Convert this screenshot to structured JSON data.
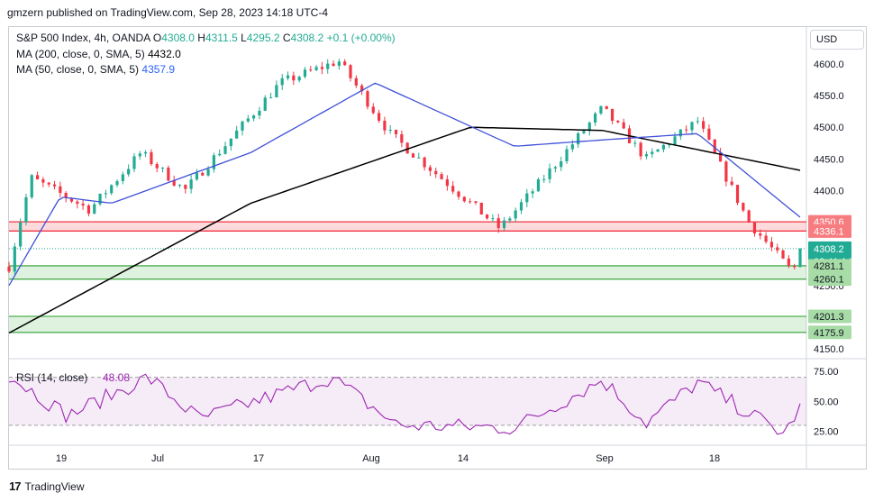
{
  "header": {
    "publisher": "gmzern published on TradingView.com, Sep 28, 2023 14:18 UTC-4"
  },
  "legend": {
    "symbol": "S&P 500 Index, 4h, OANDA",
    "o_label": "O",
    "o_value": "4308.0",
    "h_label": "H",
    "h_value": "4311.5",
    "l_label": "L",
    "l_value": "4295.2",
    "c_label": "C",
    "c_value": "4308.2",
    "change": "+0.1 (+0.00%)",
    "ma200_label": "MA (200, close, 0, SMA, 5)",
    "ma200_value": "4432.0",
    "ma50_label": "MA (50, close, 0, SMA, 5)",
    "ma50_value": "4357.9"
  },
  "currency_label": "USD",
  "footer": {
    "brand": "TradingView",
    "logo_mark": "17"
  },
  "colors": {
    "up": "#22ab94",
    "down": "#f23645",
    "ma50": "#3f51d8",
    "ma200": "#000000",
    "rsi": "#9c27b0",
    "resistance": "#f23645",
    "support": "#4caf50"
  },
  "chart_data": {
    "type": "candlestick",
    "price_axis": {
      "min": 4150,
      "max": 4600,
      "ticks": [
        "4600.0",
        "4550.0",
        "4500.0",
        "4450.0",
        "4400.0",
        "4350.0",
        "4300.0",
        "4250.0",
        "4200.0",
        "4150.0"
      ]
    },
    "x_axis": {
      "labels": [
        "19",
        "Jul",
        "17",
        "Aug",
        "14",
        "Sep",
        "18"
      ],
      "start": "2023-06-12",
      "end": "2023-09-28"
    },
    "series": [
      {
        "name": "S&P 500 Index, 4h, OANDA",
        "key_points": [
          {
            "date": "2023-06-12",
            "value": 4280
          },
          {
            "date": "2023-06-15",
            "value": 4420
          },
          {
            "date": "2023-06-23",
            "value": 4370
          },
          {
            "date": "2023-06-30",
            "value": 4460
          },
          {
            "date": "2023-07-06",
            "value": 4400
          },
          {
            "date": "2023-07-19",
            "value": 4570
          },
          {
            "date": "2023-07-27",
            "value": 4605
          },
          {
            "date": "2023-08-03",
            "value": 4490
          },
          {
            "date": "2023-08-18",
            "value": 4340
          },
          {
            "date": "2023-08-24",
            "value": 4420
          },
          {
            "date": "2023-09-01",
            "value": 4530
          },
          {
            "date": "2023-09-07",
            "value": 4450
          },
          {
            "date": "2023-09-14",
            "value": 4510
          },
          {
            "date": "2023-09-21",
            "value": 4350
          },
          {
            "date": "2023-09-27",
            "value": 4270
          },
          {
            "date": "2023-09-28",
            "value": 4308.2
          }
        ]
      },
      {
        "name": "MA (200, close, 0, SMA, 5)",
        "key_points": [
          {
            "date": "2023-06-12",
            "value": 4175
          },
          {
            "date": "2023-07-15",
            "value": 4380
          },
          {
            "date": "2023-08-14",
            "value": 4500
          },
          {
            "date": "2023-09-01",
            "value": 4495
          },
          {
            "date": "2023-09-28",
            "value": 4432
          }
        ]
      },
      {
        "name": "MA (50, close, 0, SMA, 5)",
        "key_points": [
          {
            "date": "2023-06-12",
            "value": 4250
          },
          {
            "date": "2023-06-19",
            "value": 4390
          },
          {
            "date": "2023-06-26",
            "value": 4380
          },
          {
            "date": "2023-07-15",
            "value": 4460
          },
          {
            "date": "2023-08-01",
            "value": 4570
          },
          {
            "date": "2023-08-20",
            "value": 4470
          },
          {
            "date": "2023-09-01",
            "value": 4480
          },
          {
            "date": "2023-09-14",
            "value": 4490
          },
          {
            "date": "2023-09-28",
            "value": 4357.9
          }
        ]
      }
    ],
    "zones": [
      {
        "top": 4350.6,
        "bottom": 4336.1,
        "kind": "resistance"
      },
      {
        "top": 4281.1,
        "bottom": 4260.1,
        "kind": "support"
      },
      {
        "top": 4201.3,
        "bottom": 4175.9,
        "kind": "support"
      }
    ],
    "price_labels": [
      {
        "value": 4350.6,
        "text": "4350.6",
        "kind": "resistance"
      },
      {
        "value": 4336.1,
        "text": "4336.1",
        "kind": "resistance"
      },
      {
        "value": 4308.2,
        "text": "4308.2",
        "kind": "last"
      },
      {
        "value": 4281.1,
        "text": "4281.1",
        "kind": "support"
      },
      {
        "value": 4260.1,
        "text": "4260.1",
        "kind": "support"
      },
      {
        "value": 4201.3,
        "text": "4201.3",
        "kind": "support"
      },
      {
        "value": 4175.9,
        "text": "4175.9",
        "kind": "support"
      }
    ],
    "countdown": "02:41:14",
    "rsi": {
      "label": "RSI (14, close)",
      "value": "48.08",
      "axis": {
        "min": 20,
        "max": 80,
        "ticks": [
          "75.00",
          "50.00",
          "25.00"
        ]
      },
      "band": [
        30,
        70
      ],
      "key_points": [
        {
          "date": "2023-06-12",
          "value": 72
        },
        {
          "date": "2023-06-20",
          "value": 38
        },
        {
          "date": "2023-07-01",
          "value": 70
        },
        {
          "date": "2023-07-08",
          "value": 35
        },
        {
          "date": "2023-07-26",
          "value": 70
        },
        {
          "date": "2023-08-04",
          "value": 30
        },
        {
          "date": "2023-08-20",
          "value": 28
        },
        {
          "date": "2023-09-01",
          "value": 68
        },
        {
          "date": "2023-09-07",
          "value": 32
        },
        {
          "date": "2023-09-14",
          "value": 66
        },
        {
          "date": "2023-09-26",
          "value": 22
        },
        {
          "date": "2023-09-28",
          "value": 48.08
        }
      ]
    }
  }
}
